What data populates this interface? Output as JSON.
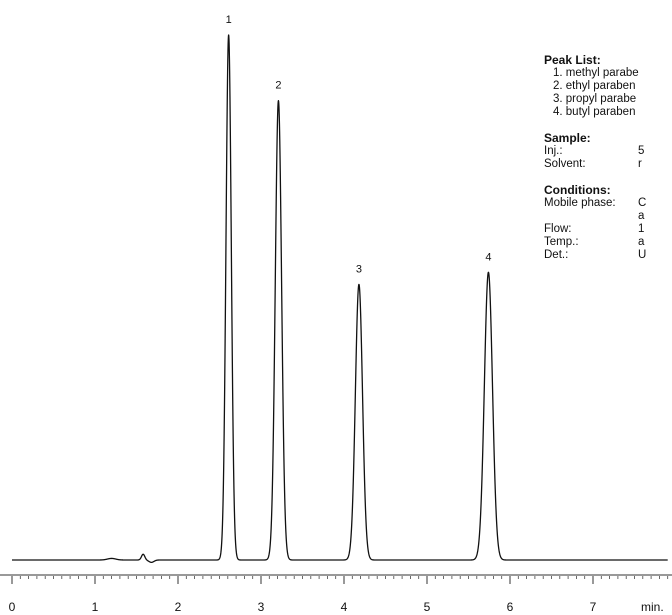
{
  "chart_data": {
    "type": "line",
    "xlabel": "min.",
    "xlim": [
      0,
      7.9
    ],
    "x_ticks": [
      "0",
      "1",
      "2",
      "3",
      "4",
      "5",
      "6",
      "7"
    ],
    "minor_tick_step": 0.1,
    "baseline": 0,
    "peaks": [
      {
        "label": "1",
        "time": 2.61,
        "height": 100,
        "sigma": 0.032
      },
      {
        "label": "2",
        "time": 3.21,
        "height": 87.5,
        "sigma": 0.038
      },
      {
        "label": "3",
        "time": 4.18,
        "height": 52.5,
        "sigma": 0.043
      },
      {
        "label": "4",
        "time": 5.74,
        "height": 54.8,
        "sigma": 0.049
      }
    ],
    "minor_features": [
      {
        "time": 1.58,
        "height": 1.1,
        "sigma": 0.02
      },
      {
        "time": 1.68,
        "height": -0.45,
        "sigma": 0.03
      },
      {
        "time": 1.2,
        "height": 0.3,
        "sigma": 0.05
      }
    ],
    "line_color": "#111111"
  },
  "panel": {
    "peak_list_title": "Peak List:",
    "peaks": [
      "1. methyl parabe",
      "2. ethyl paraben",
      "3. propyl parabe",
      "4. butyl paraben"
    ],
    "sample_title": "Sample:",
    "sample_rows": [
      {
        "key": "Inj.:",
        "value": "5"
      },
      {
        "key": "Solvent:",
        "value": "r"
      }
    ],
    "conditions_title": "Conditions:",
    "condition_rows": [
      {
        "key": "Mobile phase:",
        "value": "C"
      },
      {
        "key": "",
        "value": "a"
      },
      {
        "key": "Flow:",
        "value": "1"
      },
      {
        "key": "Temp.:",
        "value": "a"
      },
      {
        "key": "Det.:",
        "value": "U"
      }
    ]
  }
}
